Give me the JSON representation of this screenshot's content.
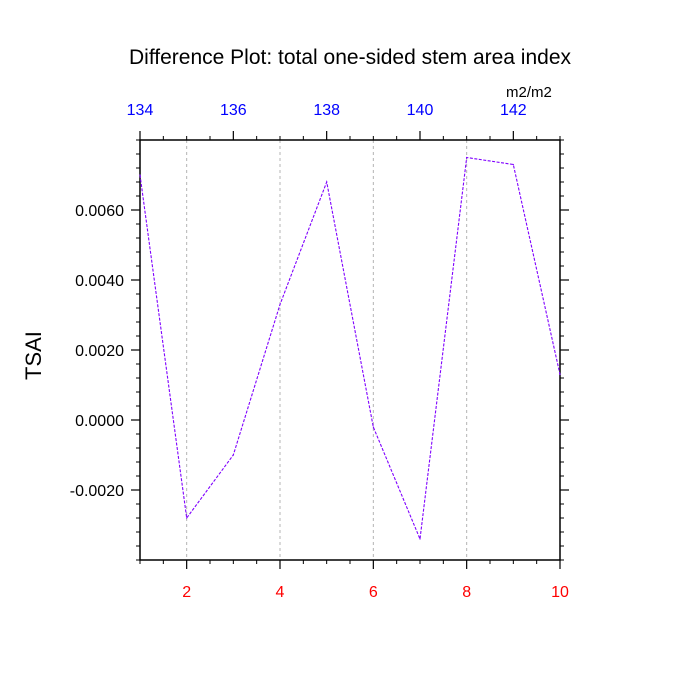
{
  "chart_data": {
    "type": "line",
    "title": "Difference Plot: total one-sided stem area index",
    "units": "m2/m2",
    "ylabel": "TSAI",
    "xlabel": "",
    "x": [
      1,
      2,
      3,
      4,
      5,
      6,
      7,
      8,
      9,
      10
    ],
    "series": [
      {
        "values": [
          0.007,
          -0.0028,
          -0.001,
          0.0033,
          0.0068,
          -0.0002,
          -0.0034,
          0.0075,
          0.0073,
          0.0013
        ],
        "color": "#7f00ff",
        "dash": true
      }
    ],
    "xlim": [
      1,
      10
    ],
    "ylim": [
      -0.004,
      0.008
    ],
    "bottom_ticks": [
      {
        "value": 2,
        "label": "2"
      },
      {
        "value": 4,
        "label": "4"
      },
      {
        "value": 6,
        "label": "6"
      },
      {
        "value": 8,
        "label": "8"
      },
      {
        "value": 10,
        "label": "10"
      }
    ],
    "top_ticks": [
      {
        "value": 1,
        "label": "134"
      },
      {
        "value": 3,
        "label": "136"
      },
      {
        "value": 5,
        "label": "138"
      },
      {
        "value": 7,
        "label": "140"
      },
      {
        "value": 9,
        "label": "142"
      }
    ],
    "y_ticks": [
      {
        "value": 0.006,
        "label": "0.0060"
      },
      {
        "value": 0.004,
        "label": "0.0040"
      },
      {
        "value": 0.002,
        "label": "0.0020"
      },
      {
        "value": 0.0,
        "label": "0.0000"
      },
      {
        "value": -0.002,
        "label": "-0.0020"
      }
    ],
    "grid": "vertical dashed",
    "colors": {
      "bottom_axis": "#ff0000",
      "top_axis": "#0000ff",
      "line": "#7f00ff",
      "grid": "#b4b4b4"
    }
  }
}
